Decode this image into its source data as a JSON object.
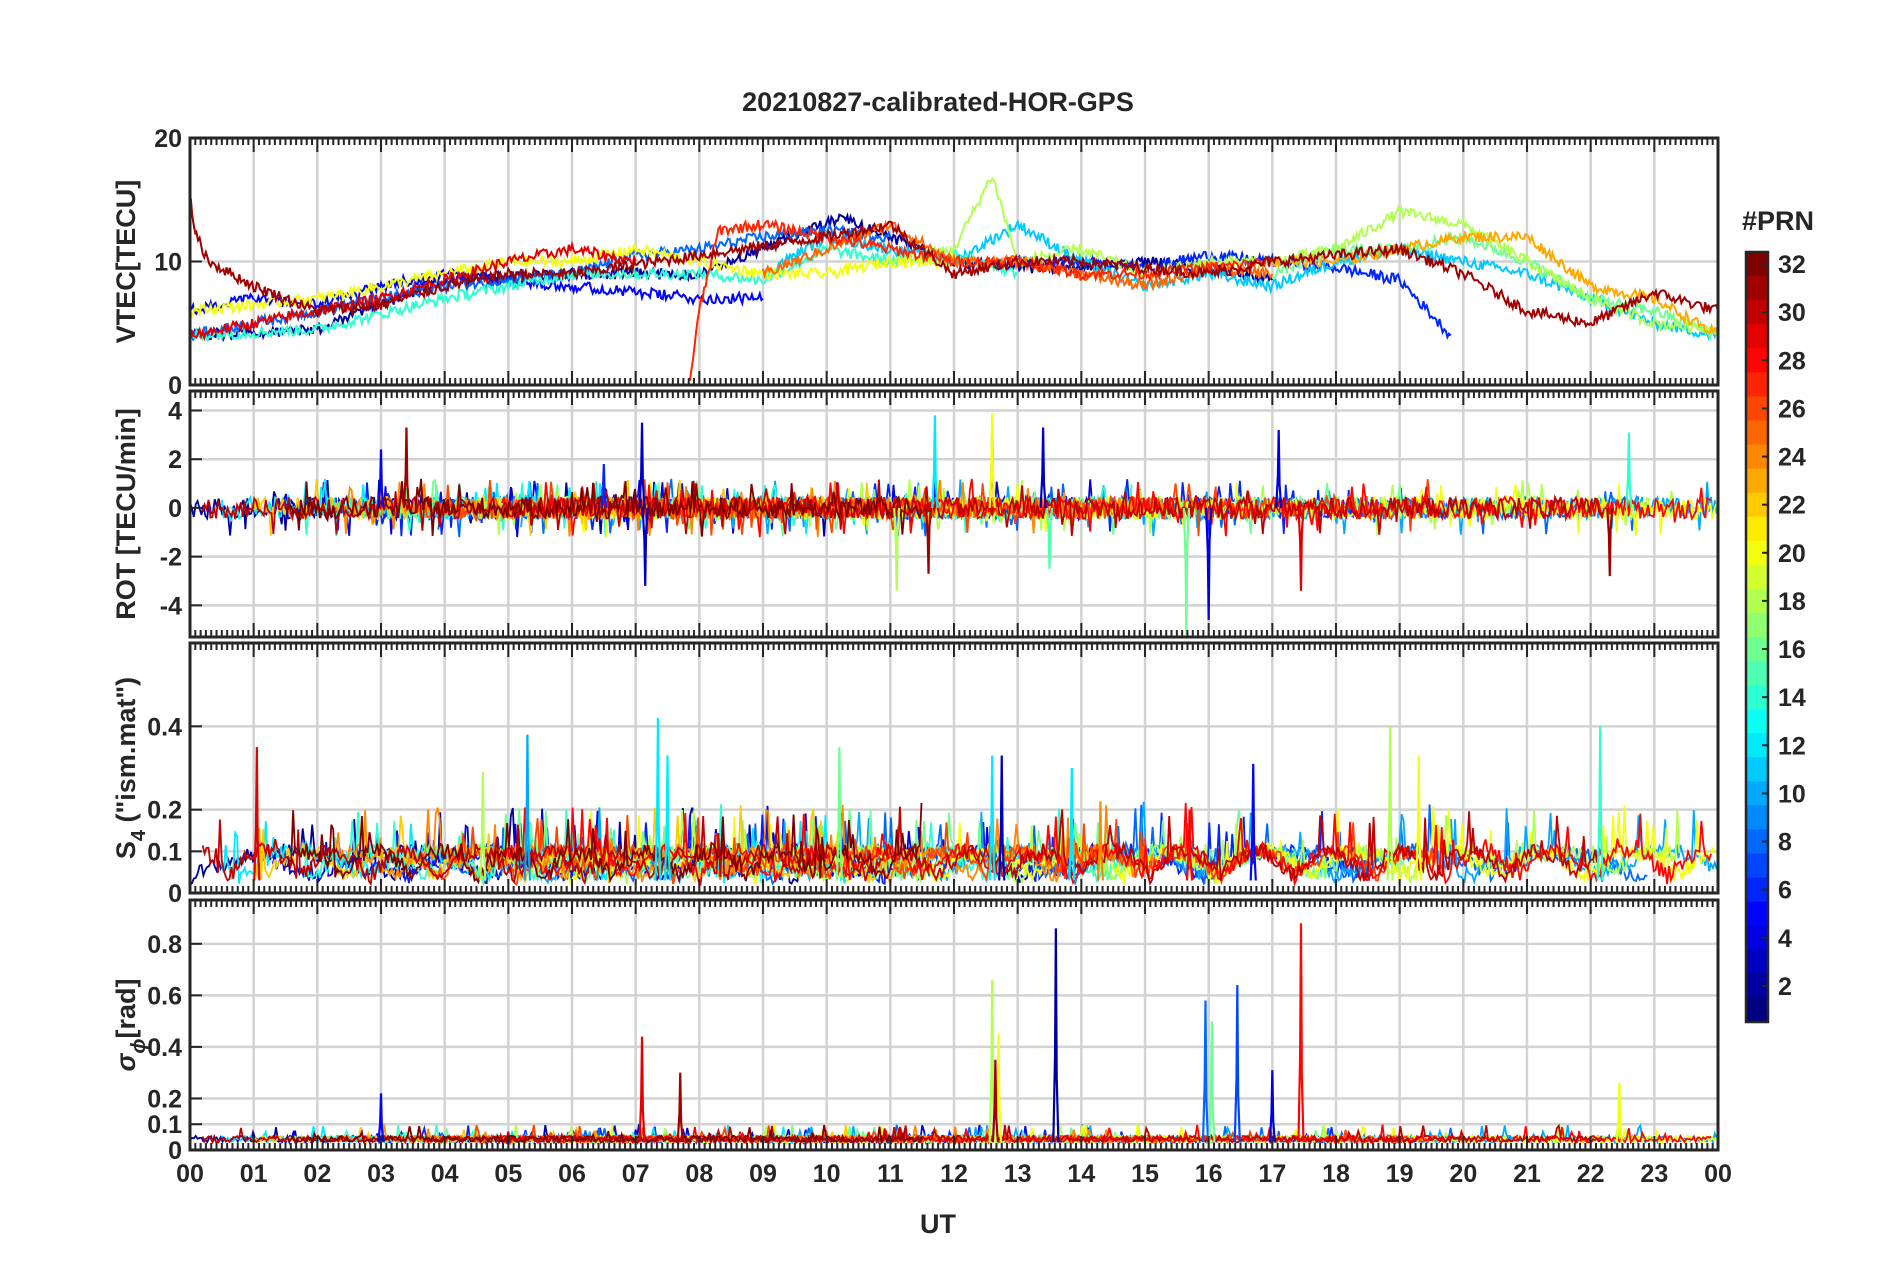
{
  "chart_data": {
    "type": "line",
    "title": "20210827-calibrated-HOR-GPS",
    "xlabel": "UT",
    "x_ticks": [
      "00",
      "01",
      "02",
      "03",
      "04",
      "05",
      "06",
      "07",
      "08",
      "09",
      "10",
      "11",
      "12",
      "13",
      "14",
      "15",
      "16",
      "17",
      "18",
      "19",
      "20",
      "21",
      "22",
      "23",
      "00"
    ],
    "xlim": [
      0,
      24
    ],
    "grid": true,
    "colorbar": {
      "title": "#PRN",
      "ticks": [
        "2",
        "4",
        "6",
        "8",
        "10",
        "12",
        "14",
        "16",
        "18",
        "20",
        "22",
        "24",
        "26",
        "28",
        "30",
        "32"
      ],
      "range": [
        1,
        32
      ],
      "colormap": "jet"
    },
    "panels": [
      {
        "id": "vtec",
        "ylabel": "VTEC[TECU]",
        "ylim": [
          0,
          20
        ],
        "yticks": [
          "0",
          "10",
          "20"
        ],
        "ytick_values": [
          0,
          10,
          20
        ],
        "series": [
          {
            "prn": 2,
            "x": [
              0,
              2,
              4,
              6,
              8,
              10.2,
              11,
              12,
              13,
              14,
              15,
              16,
              17
            ],
            "y": [
              4,
              4.5,
              8.5,
              9,
              9,
              13.5,
              12,
              10,
              9.5,
              9.5,
              10,
              9.5,
              8.5
            ]
          },
          {
            "prn": 5,
            "x": [
              0,
              1,
              2,
              3,
              4,
              6,
              7,
              8,
              9
            ],
            "y": [
              6,
              7,
              6.5,
              8,
              9,
              8,
              7.5,
              7,
              7
            ]
          },
          {
            "prn": 6,
            "x": [
              13,
              14,
              15,
              16,
              17,
              18,
              19,
              19.8
            ],
            "y": [
              10,
              10,
              9.5,
              10.5,
              10,
              9.5,
              8.5,
              4
            ]
          },
          {
            "prn": 8,
            "x": [
              0,
              1,
              2,
              3,
              4,
              5,
              6,
              7,
              8,
              9,
              10,
              11
            ],
            "y": [
              4,
              5,
              6,
              7,
              8,
              8.5,
              9,
              10.5,
              11,
              12,
              12.5,
              12
            ]
          },
          {
            "prn": 11,
            "x": [
              9,
              10,
              11,
              12,
              13,
              14,
              15,
              16,
              17,
              18,
              19,
              20,
              21,
              22,
              23,
              24
            ],
            "y": [
              9,
              12,
              11,
              10,
              13,
              10,
              8,
              9,
              8,
              10,
              11,
              10,
              9,
              7,
              5,
              4
            ]
          },
          {
            "prn": 14,
            "x": [
              0,
              2,
              4,
              6,
              8,
              9,
              10,
              11,
              12,
              13
            ],
            "y": [
              4,
              4.5,
              7,
              9,
              9,
              8.5,
              11,
              10,
              10.5,
              9
            ]
          },
          {
            "prn": 16,
            "x": [
              17,
              18,
              19,
              20,
              21,
              22,
              23,
              24
            ],
            "y": [
              9,
              11,
              11,
              12,
              10,
              7,
              6,
              4
            ]
          },
          {
            "prn": 18,
            "x": [
              11,
              12,
              12.6,
              13,
              14,
              15,
              16,
              17,
              18,
              19,
              20,
              21,
              22,
              23,
              24
            ],
            "y": [
              10,
              11,
              17,
              10,
              11,
              9,
              10,
              10,
              11,
              14,
              13,
              10,
              7,
              5,
              4.5
            ]
          },
          {
            "prn": 20,
            "x": [
              0,
              1,
              2,
              3,
              4,
              5,
              6,
              7,
              8,
              9,
              10,
              11,
              12
            ],
            "y": [
              6,
              6.5,
              7,
              8,
              9,
              10,
              10,
              11,
              10,
              9,
              9,
              10,
              10
            ]
          },
          {
            "prn": 23,
            "x": [
              17,
              18,
              19,
              20,
              21,
              22,
              23,
              24
            ],
            "y": [
              10,
              10,
              11,
              12,
              12,
              8,
              7,
              4
            ]
          },
          {
            "prn": 25,
            "x": [
              9,
              10,
              11,
              12,
              13,
              14,
              15,
              16,
              17
            ],
            "y": [
              9,
              11,
              13,
              10,
              10,
              9,
              8,
              9.5,
              9
            ]
          },
          {
            "prn": 27,
            "x": [
              7.85,
              8,
              8.3,
              9,
              10,
              11,
              12,
              13,
              14,
              15,
              16,
              17
            ],
            "y": [
              0.3,
              6,
              12.5,
              13,
              12,
              11,
              10,
              10,
              9,
              9,
              9.5,
              10
            ]
          },
          {
            "prn": 29,
            "x": [
              0,
              1,
              2,
              3,
              4,
              5,
              6,
              7
            ],
            "y": [
              4,
              5,
              6,
              7,
              8.5,
              10,
              11,
              10
            ]
          },
          {
            "prn": 31,
            "x": [
              0,
              0.1,
              0.3,
              1,
              2,
              3,
              4,
              5,
              6,
              10,
              11,
              12,
              13,
              14,
              15,
              16,
              17,
              18,
              19,
              20,
              21,
              22,
              23,
              24
            ],
            "y": [
              15,
              12,
              10,
              8,
              6,
              6.5,
              8,
              9,
              9,
              12,
              13,
              9,
              10,
              10,
              9.5,
              9,
              10,
              10.5,
              11,
              9,
              6,
              5,
              7.5,
              6
            ]
          }
        ]
      },
      {
        "id": "rot",
        "ylabel": "ROT [TECU/min]",
        "ylim": [
          -5.3,
          4.8
        ],
        "yticks": [
          "-4",
          "-2",
          "0",
          "2",
          "4"
        ],
        "ytick_values": [
          -4,
          -2,
          0,
          2,
          4
        ],
        "spikes": [
          {
            "prn": 5,
            "x": 3.0,
            "y": 2.4
          },
          {
            "prn": 31,
            "x": 3.4,
            "y": 3.3
          },
          {
            "prn": 6,
            "x": 6.5,
            "y": 1.8
          },
          {
            "prn": 3,
            "x": 7.1,
            "y": 3.5
          },
          {
            "prn": 3,
            "x": 7.15,
            "y": -3.2
          },
          {
            "prn": 12,
            "x": 11.7,
            "y": 3.8
          },
          {
            "prn": 18,
            "x": 11.1,
            "y": -3.4
          },
          {
            "prn": 31,
            "x": 11.6,
            "y": -2.7
          },
          {
            "prn": 31,
            "x": 12.6,
            "y": 3.5
          },
          {
            "prn": 20,
            "x": 12.6,
            "y": 3.9
          },
          {
            "prn": 3,
            "x": 13.4,
            "y": 3.3
          },
          {
            "prn": 16,
            "x": 15.65,
            "y": -5.2
          },
          {
            "prn": 4,
            "x": 16.0,
            "y": -4.6
          },
          {
            "prn": 4,
            "x": 17.1,
            "y": 3.2
          },
          {
            "prn": 29,
            "x": 17.45,
            "y": -3.4
          },
          {
            "prn": 14,
            "x": 22.6,
            "y": 3.1
          },
          {
            "prn": 31,
            "x": 22.3,
            "y": -2.8
          },
          {
            "prn": 15,
            "x": 13.5,
            "y": -2.5
          }
        ]
      },
      {
        "id": "s4",
        "ylabel": "S",
        "ylabel_sub": "4",
        "ylabel_rest": " (\"ism.mat\")",
        "ylim": [
          0,
          0.6
        ],
        "yticks": [
          "0",
          "0.1",
          "0.2",
          "0.4"
        ],
        "ytick_values": [
          0,
          0.1,
          0.2,
          0.4
        ],
        "spikes": [
          {
            "prn": 29,
            "x": 1.05,
            "y": 0.35
          },
          {
            "prn": 10,
            "x": 5.3,
            "y": 0.38
          },
          {
            "prn": 12,
            "x": 7.35,
            "y": 0.42
          },
          {
            "prn": 12,
            "x": 7.5,
            "y": 0.33
          },
          {
            "prn": 16,
            "x": 10.2,
            "y": 0.35
          },
          {
            "prn": 12,
            "x": 12.6,
            "y": 0.33
          },
          {
            "prn": 3,
            "x": 12.75,
            "y": 0.33
          },
          {
            "prn": 12,
            "x": 13.85,
            "y": 0.3
          },
          {
            "prn": 5,
            "x": 16.7,
            "y": 0.31
          },
          {
            "prn": 18,
            "x": 18.85,
            "y": 0.4
          },
          {
            "prn": 20,
            "x": 19.3,
            "y": 0.33
          },
          {
            "prn": 14,
            "x": 22.15,
            "y": 0.4
          },
          {
            "prn": 24,
            "x": 14.3,
            "y": 0.22
          },
          {
            "prn": 28,
            "x": 15.7,
            "y": 0.2
          },
          {
            "prn": 18,
            "x": 4.6,
            "y": 0.29
          }
        ]
      },
      {
        "id": "sigma_phi",
        "ylabel": "σ",
        "ylabel_sub": "ϕ",
        "ylabel_rest": "[rad]",
        "ylim": [
          0,
          0.97
        ],
        "yticks": [
          "0",
          "0.1",
          "0.2",
          "0.4",
          "0.6",
          "0.8"
        ],
        "ytick_values": [
          0,
          0.1,
          0.2,
          0.4,
          0.6,
          0.8
        ],
        "spikes": [
          {
            "prn": 29,
            "x": 7.1,
            "y": 0.44
          },
          {
            "prn": 31,
            "x": 7.7,
            "y": 0.3
          },
          {
            "prn": 18,
            "x": 12.6,
            "y": 0.66
          },
          {
            "prn": 20,
            "x": 12.7,
            "y": 0.45
          },
          {
            "prn": 31,
            "x": 12.65,
            "y": 0.35
          },
          {
            "prn": 2,
            "x": 13.6,
            "y": 0.86
          },
          {
            "prn": 8,
            "x": 15.95,
            "y": 0.58
          },
          {
            "prn": 16,
            "x": 16.05,
            "y": 0.5
          },
          {
            "prn": 7,
            "x": 16.45,
            "y": 0.64
          },
          {
            "prn": 4,
            "x": 17.0,
            "y": 0.31
          },
          {
            "prn": 28,
            "x": 17.45,
            "y": 0.88
          },
          {
            "prn": 20,
            "x": 22.45,
            "y": 0.26
          },
          {
            "prn": 5,
            "x": 3.0,
            "y": 0.22
          }
        ]
      }
    ]
  }
}
